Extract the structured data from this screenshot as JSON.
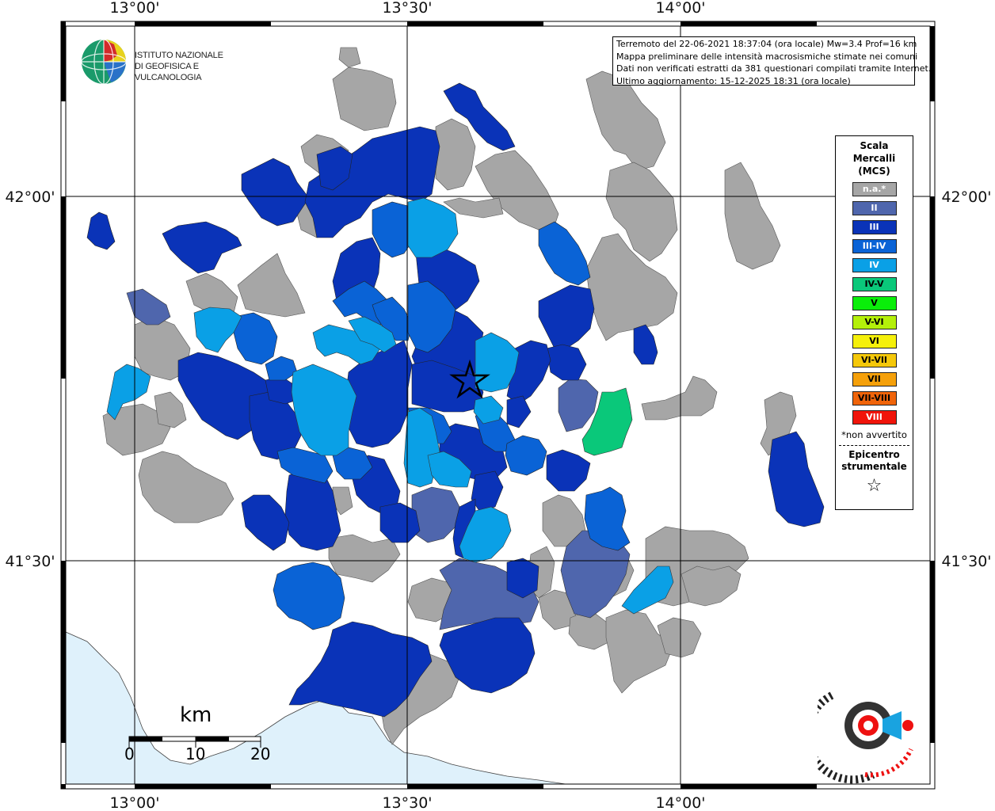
{
  "map": {
    "longitude_labels": [
      "13°00'",
      "13°30'",
      "14°00'"
    ],
    "latitude_labels": [
      "42°00'",
      "41°30'"
    ]
  },
  "info_box": {
    "line1": "Terremoto del 22-06-2021 18:37:04 (ora locale) Mw=3.4 Prof=16 km",
    "line2": "Mappa preliminare delle intensità macrosismiche stimate nei comuni",
    "line3": "Dati non verificati estratti da 381 questionari compilati tramite Internet.",
    "line4": "Ultimo aggiornamento: 15-12-2025 18:31 (ora locale)"
  },
  "logo": {
    "line1": "ISTITUTO NAZIONALE",
    "line2": "DI GEOFISICA E VULCANOLOGIA"
  },
  "legend": {
    "title_line1": "Scala",
    "title_line2": "Mercalli",
    "title_line3": "(MCS)",
    "items": [
      {
        "label": "n.a.*",
        "color": "#a6a6a6",
        "text_color": "#ffffff"
      },
      {
        "label": "II",
        "color": "#4f66ad",
        "text_color": "#ffffff"
      },
      {
        "label": "III",
        "color": "#0a33b8",
        "text_color": "#ffffff"
      },
      {
        "label": "III-IV",
        "color": "#0a63d6",
        "text_color": "#ffffff"
      },
      {
        "label": "IV",
        "color": "#0aa0e6",
        "text_color": "#ffffff"
      },
      {
        "label": "IV-V",
        "color": "#0ac87a",
        "text_color": "#000000"
      },
      {
        "label": "V",
        "color": "#0aee0a",
        "text_color": "#000000"
      },
      {
        "label": "V-VI",
        "color": "#b4f00a",
        "text_color": "#000000"
      },
      {
        "label": "VI",
        "color": "#f5f00a",
        "text_color": "#000000"
      },
      {
        "label": "VI-VII",
        "color": "#f5c80a",
        "text_color": "#000000"
      },
      {
        "label": "VII",
        "color": "#f5a00a",
        "text_color": "#000000"
      },
      {
        "label": "VII-VIII",
        "color": "#f0640a",
        "text_color": "#000000"
      },
      {
        "label": "VIII",
        "color": "#f0140a",
        "text_color": "#ffffff"
      }
    ],
    "note": "*non avvertito",
    "epicenter_line1": "Epicentro",
    "epicenter_line2": "strumentale",
    "star": "☆"
  },
  "scalebar": {
    "unit": "km",
    "ticks": [
      "0",
      "10",
      "20"
    ]
  },
  "colors": {
    "sea": "#dff1fb",
    "na": "#a6a6a6",
    "II": "#4f66ad",
    "III": "#0a33b8",
    "III-IV": "#0a63d6",
    "IV": "#0aa0e6",
    "IV-V": "#0ac87a"
  },
  "epicenter_icon": "star-icon"
}
